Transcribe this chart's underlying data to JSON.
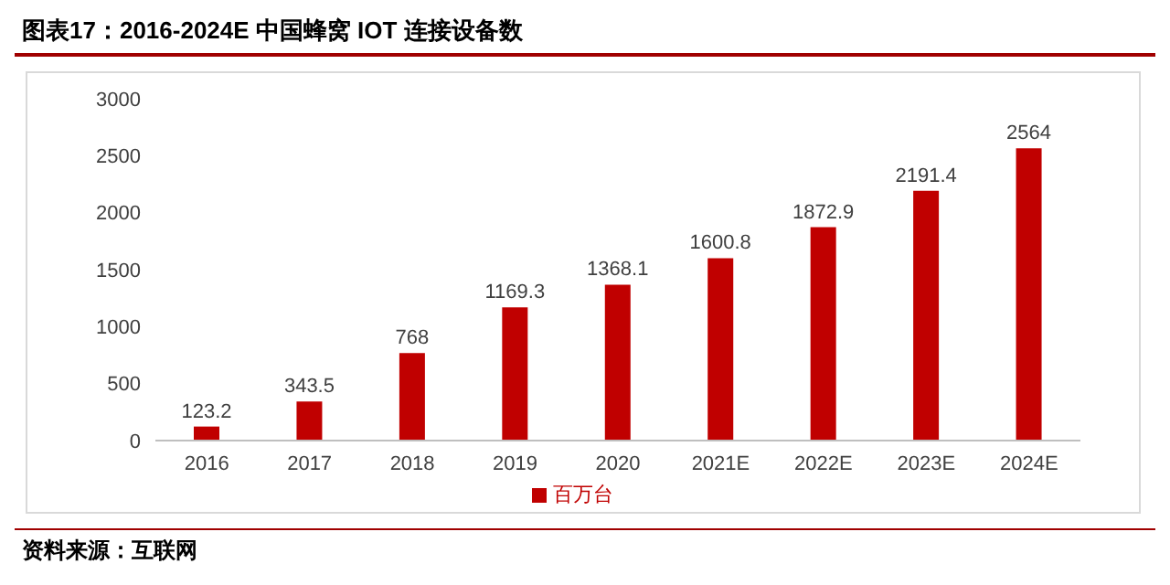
{
  "chart_data": {
    "type": "bar",
    "title": "图表17：2016-2024E 中国蜂窝 IOT 连接设备数",
    "categories": [
      "2016",
      "2017",
      "2018",
      "2019",
      "2020",
      "2021E",
      "2022E",
      "2023E",
      "2024E"
    ],
    "series": [
      {
        "name": "百万台",
        "color": "#c00000",
        "values": [
          123.2,
          343.5,
          768,
          1169.3,
          1368.1,
          1600.8,
          1872.9,
          2191.4,
          2564
        ]
      }
    ],
    "ylim": [
      0,
      3000
    ],
    "yticks": [
      0,
      500,
      1000,
      1500,
      2000,
      2500,
      3000
    ],
    "grid": false,
    "legend": "bottom",
    "data_labels": true,
    "annotations": [
      "资料来源：互联网"
    ]
  }
}
